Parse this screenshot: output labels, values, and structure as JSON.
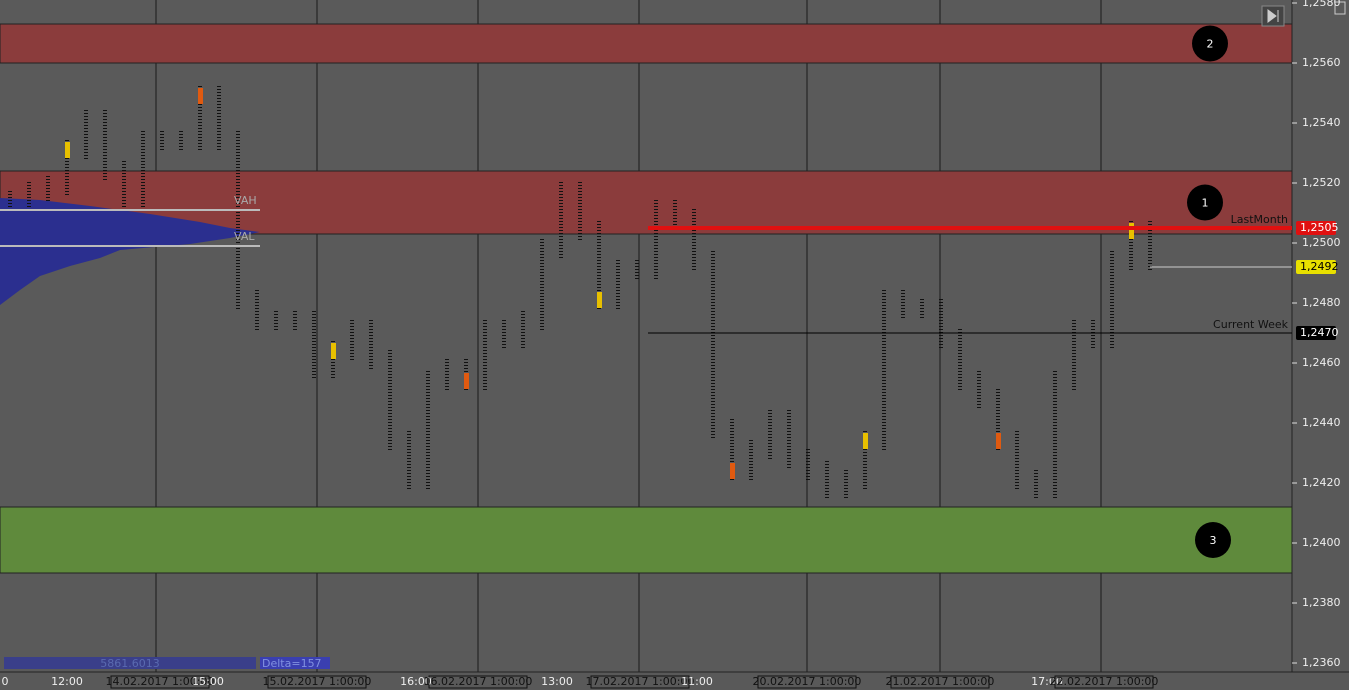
{
  "chart_data": {
    "type": "market-profile",
    "ylim": [
      1.2357,
      1.2581
    ],
    "yticks": [
      {
        "value": 1.258,
        "label": "1,2580"
      },
      {
        "value": 1.256,
        "label": "1,2560"
      },
      {
        "value": 1.254,
        "label": "1,2540"
      },
      {
        "value": 1.252,
        "label": "1,2520"
      },
      {
        "value": 1.25,
        "label": "1,2500"
      },
      {
        "value": 1.248,
        "label": "1,2480"
      },
      {
        "value": 1.246,
        "label": "1,2460"
      },
      {
        "value": 1.244,
        "label": "1,2440"
      },
      {
        "value": 1.242,
        "label": "1,2420"
      },
      {
        "value": 1.24,
        "label": "1,2400"
      },
      {
        "value": 1.238,
        "label": "1,2380"
      },
      {
        "value": 1.236,
        "label": "1,2360"
      }
    ],
    "zones": [
      {
        "label": "2",
        "low": 1.256,
        "high": 1.2573,
        "color": "#8b3c3c"
      },
      {
        "label": "1",
        "low": 1.2503,
        "high": 1.2524,
        "color": "#8b3c3c"
      },
      {
        "label": "3",
        "low": 1.239,
        "high": 1.2412,
        "color": "#5f8a3c"
      }
    ],
    "levels": [
      {
        "name": "LastMonth",
        "value": 1.2505,
        "label": "1,2505",
        "color": "#e01010"
      },
      {
        "value": 1.2492,
        "label": "1,2492",
        "color": "#e8e000"
      },
      {
        "name": "Current Week",
        "value": 1.247,
        "label": "1,2470",
        "color": "#000000"
      }
    ],
    "value_area": [
      {
        "name": "VAH",
        "value": 1.2511
      },
      {
        "name": "VAL",
        "value": 1.2499
      }
    ],
    "series": [
      {
        "name": "price",
        "color": "#111111",
        "values": [
          1.2514,
          1.2517,
          1.2519,
          1.2531,
          1.2541,
          1.2524,
          1.2514,
          1.2534,
          1.2534,
          1.2534,
          1.2549,
          1.2534,
          1.2481,
          1.2474,
          1.2474,
          1.2474,
          1.2458,
          1.2464,
          1.2471,
          1.2461,
          1.2434,
          1.2421,
          1.2454,
          1.2458,
          1.2454,
          1.2471,
          1.2468,
          1.2474,
          1.2498,
          1.2517,
          1.2504,
          1.2481,
          1.2491,
          1.2491,
          1.2511,
          1.2508,
          1.2494,
          1.2438,
          1.2424,
          1.2431,
          1.2441,
          1.2428,
          1.2424,
          1.2418,
          1.2421,
          1.2434,
          1.2481,
          1.2478,
          1.2478,
          1.2468,
          1.2454,
          1.2448,
          1.2434,
          1.2421,
          1.2418,
          1.2454,
          1.2471,
          1.2468,
          1.2494,
          1.2504,
          1.2494
        ]
      }
    ],
    "x_labels": [
      "0",
      "12:00",
      "14.02.2017 1:00:00",
      "15:00",
      "15.02.2017 1:00:00",
      "16:00",
      "16.02.2017 1:00:00",
      "13:00",
      "17.02.2017 1:00:00",
      "11:00",
      "20.02.2017 1:00:00",
      "21.02.2017 1:00:00",
      "17:00",
      "22.02.2017 1:00:00"
    ],
    "info": {
      "volume": "5861.6013",
      "delta": "Delta=157"
    }
  }
}
